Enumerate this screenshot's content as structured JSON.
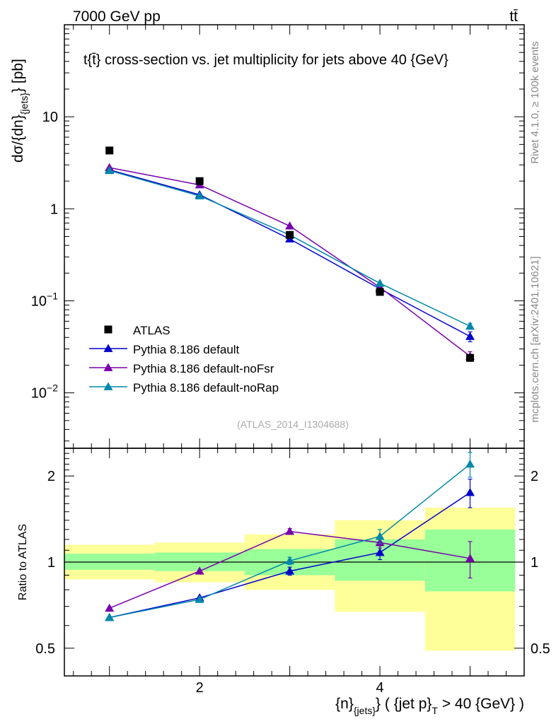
{
  "header": {
    "left": "7000 GeV pp",
    "right": "tt̄"
  },
  "side_labels": {
    "rivet": "Rivet 4.1.0, ≥ 100k events",
    "mcplots": "mcplots.cern.ch [arXiv:2401.10621]"
  },
  "chart_data": [
    {
      "type": "line",
      "scale": "log",
      "title": "tt̄ cross-section vs. jet multiplicity for jets above 40 GeV",
      "title_display": "t{t̄} cross-section vs. jet multiplicity for jets above 40 {GeV}",
      "ylabel": "dσ/{dn}_{jets} [pb]",
      "ylabel_display": [
        "dσ/{dn}",
        "{jets}",
        "} [pb]"
      ],
      "xlim": [
        0.5,
        5.6
      ],
      "ylim": [
        0.0025,
        100
      ],
      "y_ticks": [
        {
          "value": 10,
          "label": "10"
        },
        {
          "value": 1,
          "label": "1"
        },
        {
          "value": 0.1,
          "label": "10",
          "exp": "−1"
        },
        {
          "value": 0.01,
          "label": "10",
          "exp": "−2"
        }
      ],
      "watermark": "(ATLAS_2014_I1304688)",
      "x": [
        1,
        2,
        3,
        4,
        5
      ],
      "series": [
        {
          "name": "ATLAS",
          "marker": "square",
          "color": "#000000",
          "values": [
            4.3,
            2.0,
            0.52,
            0.125,
            0.024
          ],
          "errors": [
            0.3,
            0.12,
            0.04,
            0.01,
            0.004
          ]
        },
        {
          "name": "Pythia 8.186 default",
          "marker": "triangle",
          "color": "#0000cc",
          "values": [
            2.65,
            1.42,
            0.47,
            0.135,
            0.041
          ],
          "errors": [
            0,
            0,
            0,
            0,
            0.005
          ]
        },
        {
          "name": "Pythia 8.186 default-noFsr",
          "marker": "triangle",
          "color": "#7700aa",
          "values": [
            2.8,
            1.82,
            0.65,
            0.14,
            0.025
          ],
          "errors": [
            0,
            0,
            0,
            0,
            0.003
          ]
        },
        {
          "name": "Pythia 8.186 default-noRap",
          "marker": "triangle",
          "color": "#0088aa",
          "values": [
            2.6,
            1.38,
            0.52,
            0.155,
            0.053
          ],
          "errors": [
            0,
            0,
            0,
            0,
            0.004
          ]
        }
      ]
    },
    {
      "type": "line",
      "scale": "log",
      "ylabel": "Ratio to ATLAS",
      "xlabel": "{n}_{jets} ( {jet p}_T > 40 {GeV} )",
      "xlabel_display": [
        "{n}",
        "{jets}",
        "} ( {jet p}",
        "T",
        " > 40 {GeV} )"
      ],
      "xlim": [
        0.5,
        5.6
      ],
      "ylim": [
        0.4,
        2.5
      ],
      "y_ticks": [
        {
          "value": 2,
          "label": "2"
        },
        {
          "value": 1,
          "label": "1"
        },
        {
          "value": 0.5,
          "label": "0.5"
        }
      ],
      "x_ticks": [
        {
          "value": 2,
          "label": "2"
        },
        {
          "value": 4,
          "label": "4"
        }
      ],
      "bands": [
        {
          "x0": 0.5,
          "x1": 1.5,
          "yellow": [
            0.87,
            1.15
          ],
          "green": [
            0.94,
            1.07
          ]
        },
        {
          "x0": 1.5,
          "x1": 2.5,
          "yellow": [
            0.85,
            1.17
          ],
          "green": [
            0.93,
            1.08
          ]
        },
        {
          "x0": 2.5,
          "x1": 3.5,
          "yellow": [
            0.8,
            1.25
          ],
          "green": [
            0.9,
            1.11
          ]
        },
        {
          "x0": 3.5,
          "x1": 4.5,
          "yellow": [
            0.67,
            1.4
          ],
          "green": [
            0.86,
            1.2
          ]
        },
        {
          "x0": 4.5,
          "x1": 5.5,
          "yellow": [
            0.49,
            1.55
          ],
          "green": [
            0.79,
            1.3
          ]
        }
      ],
      "x": [
        1,
        2,
        3,
        4,
        5
      ],
      "series": [
        {
          "name": "Pythia 8.186 default",
          "color": "#0000cc",
          "values": [
            0.64,
            0.75,
            0.93,
            1.08,
            1.75
          ],
          "errors": [
            0,
            0,
            0.03,
            0.06,
            0.2
          ]
        },
        {
          "name": "Pythia 8.186 default-noFsr",
          "color": "#7700aa",
          "values": [
            0.69,
            0.93,
            1.28,
            1.17,
            1.03
          ],
          "errors": [
            0,
            0,
            0.03,
            0.05,
            0.15
          ]
        },
        {
          "name": "Pythia 8.186 default-noRap",
          "color": "#0088aa",
          "values": [
            0.64,
            0.74,
            1.01,
            1.23,
            2.2
          ],
          "errors": [
            0,
            0,
            0.03,
            0.07,
            0.22
          ]
        }
      ]
    }
  ]
}
